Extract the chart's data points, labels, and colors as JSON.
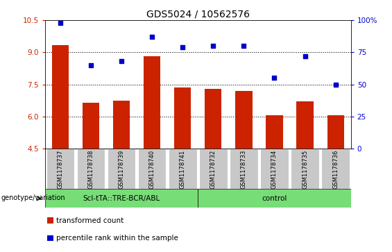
{
  "title": "GDS5024 / 10562576",
  "samples": [
    "GSM1178737",
    "GSM1178738",
    "GSM1178739",
    "GSM1178740",
    "GSM1178741",
    "GSM1178732",
    "GSM1178733",
    "GSM1178734",
    "GSM1178735",
    "GSM1178736"
  ],
  "transformed_count": [
    9.35,
    6.65,
    6.75,
    8.8,
    7.35,
    7.3,
    7.2,
    6.05,
    6.7,
    6.05
  ],
  "percentile_rank": [
    98,
    65,
    68,
    87,
    79,
    80,
    80,
    55,
    72,
    50
  ],
  "bar_color": "#cc2200",
  "dot_color": "#0000cc",
  "ylim_left": [
    4.5,
    10.5
  ],
  "ylim_right": [
    0,
    100
  ],
  "yticks_left": [
    4.5,
    6.0,
    7.5,
    9.0,
    10.5
  ],
  "yticks_right": [
    0,
    25,
    50,
    75,
    100
  ],
  "ytick_labels_right": [
    "0",
    "25",
    "50",
    "75",
    "100%"
  ],
  "group1_label": "Scl-tTA::TRE-BCR/ABL",
  "group2_label": "control",
  "group1_count": 5,
  "group2_count": 5,
  "group1_color": "#77dd77",
  "group2_color": "#77dd77",
  "xlabel_left": "genotype/variation",
  "legend_bar_label": "transformed count",
  "legend_dot_label": "percentile rank within the sample",
  "title_fontsize": 10,
  "tick_fontsize": 7.5,
  "label_fontsize": 8,
  "background_color": "#ffffff",
  "xticklabel_bg": "#c8c8c8",
  "gridline_color": "#000000",
  "base_value": 4.5
}
